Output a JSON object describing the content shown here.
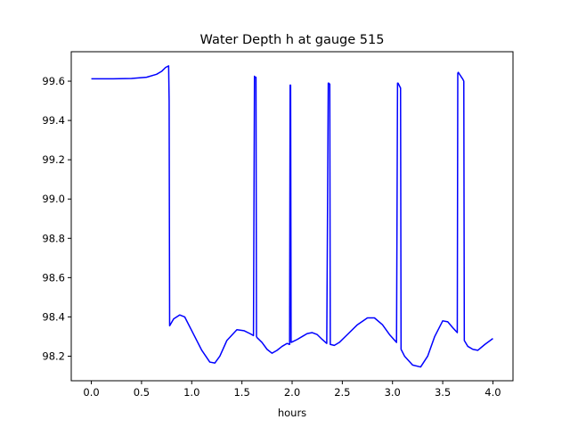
{
  "chart_data": {
    "type": "line",
    "title": "Water Depth h at gauge 515",
    "xlabel": "hours",
    "ylabel": "",
    "xlim": [
      -0.2,
      4.2
    ],
    "ylim": [
      98.075,
      99.75
    ],
    "xticks": [
      0.0,
      0.5,
      1.0,
      1.5,
      2.0,
      2.5,
      3.0,
      3.5,
      4.0
    ],
    "xtick_labels": [
      "0.0",
      "0.5",
      "1.0",
      "1.5",
      "2.0",
      "2.5",
      "3.0",
      "3.5",
      "4.0"
    ],
    "yticks": [
      98.2,
      98.4,
      98.6,
      98.8,
      99.0,
      99.2,
      99.4,
      99.6
    ],
    "ytick_labels": [
      "98.2",
      "98.4",
      "98.6",
      "98.8",
      "99.0",
      "99.2",
      "99.4",
      "99.6"
    ],
    "grid": false,
    "legend": "none",
    "series": [
      {
        "color": "#0000ff",
        "x": [
          0.0,
          0.2,
          0.4,
          0.55,
          0.65,
          0.7,
          0.74,
          0.77,
          0.775,
          0.78,
          0.82,
          0.88,
          0.93,
          1.0,
          1.1,
          1.18,
          1.23,
          1.28,
          1.35,
          1.45,
          1.52,
          1.58,
          1.615,
          1.625,
          1.63,
          1.64,
          1.645,
          1.65,
          1.7,
          1.75,
          1.8,
          1.85,
          1.9,
          1.95,
          1.975,
          1.98,
          1.985,
          1.99,
          2.05,
          2.1,
          2.15,
          2.2,
          2.25,
          2.3,
          2.345,
          2.36,
          2.365,
          2.375,
          2.38,
          2.42,
          2.47,
          2.55,
          2.65,
          2.75,
          2.82,
          2.9,
          2.97,
          3.04,
          3.05,
          3.055,
          3.08,
          3.085,
          3.12,
          3.2,
          3.28,
          3.35,
          3.42,
          3.5,
          3.55,
          3.6,
          3.645,
          3.65,
          3.655,
          3.7,
          3.71,
          3.715,
          3.75,
          3.8,
          3.85,
          3.92,
          4.0
        ],
        "y": [
          99.612,
          99.612,
          99.614,
          99.62,
          99.635,
          99.65,
          99.67,
          99.678,
          99.5,
          98.355,
          98.39,
          98.41,
          98.4,
          98.33,
          98.23,
          98.17,
          98.165,
          98.2,
          98.28,
          98.335,
          98.33,
          98.315,
          98.305,
          99.625,
          99.62,
          99.62,
          98.3,
          98.295,
          98.27,
          98.235,
          98.215,
          98.23,
          98.25,
          98.265,
          98.26,
          99.58,
          99.58,
          98.27,
          98.285,
          98.3,
          98.315,
          98.32,
          98.31,
          98.285,
          98.265,
          99.59,
          99.59,
          99.585,
          98.26,
          98.255,
          98.27,
          98.31,
          98.36,
          98.395,
          98.395,
          98.36,
          98.31,
          98.27,
          99.59,
          99.59,
          99.565,
          98.235,
          98.2,
          98.155,
          98.145,
          98.2,
          98.3,
          98.38,
          98.375,
          98.345,
          98.32,
          99.64,
          99.645,
          99.61,
          99.6,
          98.28,
          98.25,
          98.235,
          98.23,
          98.26,
          98.29
        ]
      }
    ]
  }
}
